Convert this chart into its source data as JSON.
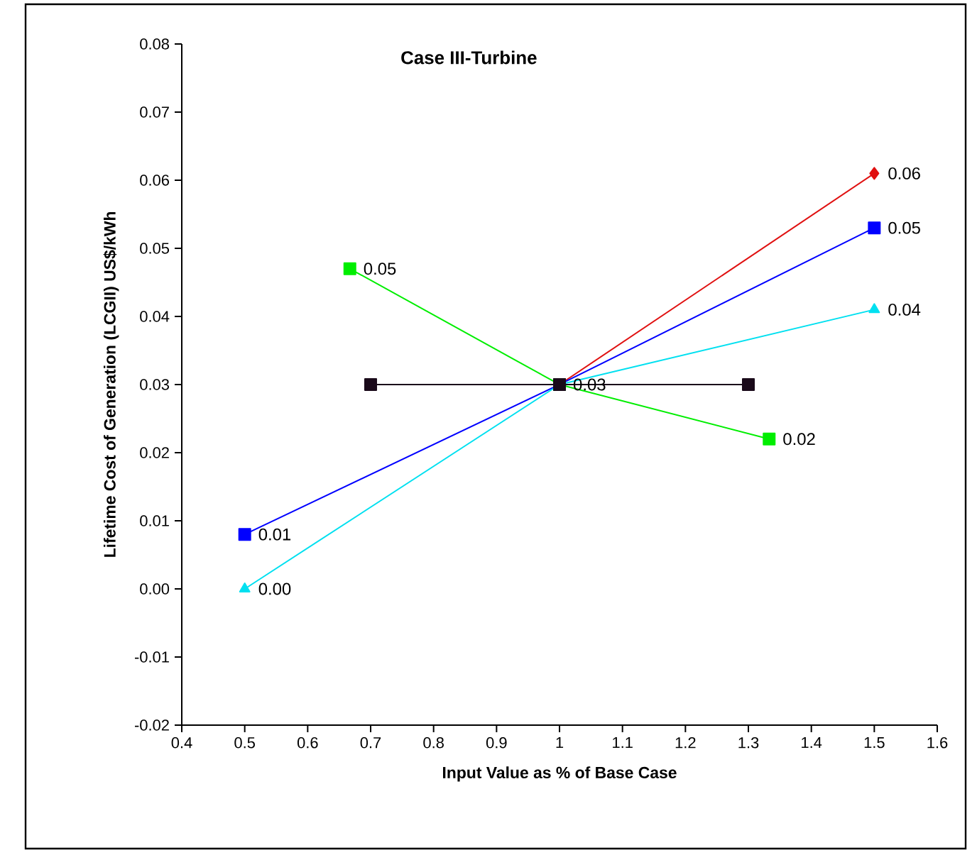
{
  "chart_data": {
    "type": "line",
    "title": "Case III-Turbine",
    "xlabel": "Input Value as % of Base Case",
    "ylabel": "Lifetime Cost of Generation (LCGII) US$/kWh",
    "xlim": [
      0.4,
      1.6
    ],
    "xticks": [
      0.4,
      0.5,
      0.6,
      0.7,
      0.8,
      0.9,
      1,
      1.1,
      1.2,
      1.3,
      1.4,
      1.5,
      1.6
    ],
    "ylim": [
      -0.02,
      0.08
    ],
    "yticks": [
      -0.02,
      -0.01,
      {
        "value": 0,
        "label": "0.00"
      },
      0.01,
      0.02,
      0.03,
      0.04,
      0.05,
      0.06,
      0.07,
      0.08
    ],
    "series": [
      {
        "color": "#e01010",
        "marker": "diamond",
        "x": [
          1,
          1.5
        ],
        "values": [
          0.03,
          0.061
        ],
        "value_labels": [
          null,
          "0.06"
        ]
      },
      {
        "color": "#0000ff",
        "marker": "square",
        "x": [
          0.5,
          1,
          1.5
        ],
        "values": [
          0.008,
          0.03,
          0.053
        ],
        "value_labels": [
          "0.01",
          null,
          "0.05"
        ]
      },
      {
        "color": "#00e0f0",
        "marker": "triangle",
        "x": [
          0.5,
          1,
          1.5
        ],
        "values": [
          0.0,
          0.03,
          0.041
        ],
        "value_labels": [
          "0.00",
          null,
          "0.04"
        ]
      },
      {
        "color": "#00ee00",
        "marker": "square",
        "x": [
          0.667,
          1,
          1.333
        ],
        "values": [
          0.047,
          0.03,
          0.022
        ],
        "value_labels": [
          "0.05",
          null,
          "0.02"
        ]
      },
      {
        "color": "#1a0a1a",
        "marker": "square",
        "x": [
          0.7,
          1,
          1.3
        ],
        "values": [
          0.03,
          0.03,
          0.03
        ],
        "value_labels": [
          null,
          "0.03",
          null
        ]
      }
    ]
  }
}
